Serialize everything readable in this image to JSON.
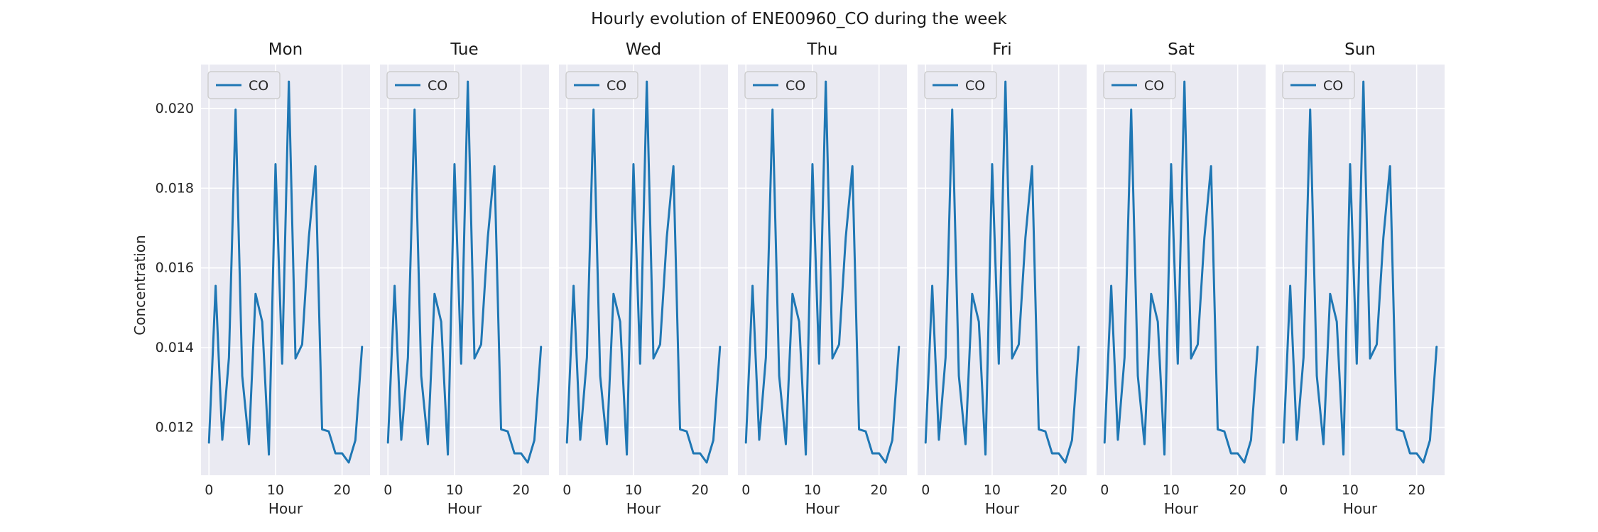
{
  "figure": {
    "suptitle": "Hourly evolution of ENE00960_CO during the week"
  },
  "colors": {
    "line": "#1f77b4",
    "panel_background": "#eaeaf2",
    "grid": "#ffffff"
  },
  "chart_data": {
    "type": "line",
    "panels": [
      "Mon",
      "Tue",
      "Wed",
      "Thu",
      "Fri",
      "Sat",
      "Sun"
    ],
    "xlabel": "Hour",
    "ylabel": "Concentration",
    "xlim": [
      -1.2,
      24.2
    ],
    "ylim": [
      0.0108,
      0.0211
    ],
    "xticks": [
      0,
      10,
      20
    ],
    "yticks": [
      0.012,
      0.014,
      0.016,
      0.018,
      0.02
    ],
    "ytick_labels": [
      "0.012",
      "0.014",
      "0.016",
      "0.018",
      "0.020"
    ],
    "grid": true,
    "legend_location": "top-left",
    "shared_y": true,
    "series": [
      {
        "name": "CO",
        "x": [
          0,
          1,
          2,
          3,
          4,
          5,
          6,
          7,
          8,
          9,
          10,
          11,
          12,
          13,
          14,
          15,
          16,
          17,
          18,
          19,
          20,
          21,
          22,
          23
        ],
        "y": [
          0.01162,
          0.01555,
          0.01169,
          0.01375,
          0.01997,
          0.01329,
          0.01158,
          0.01535,
          0.01465,
          0.01132,
          0.0186,
          0.0136,
          0.02067,
          0.01373,
          0.01408,
          0.01676,
          0.01855,
          0.01195,
          0.0119,
          0.01135,
          0.01135,
          0.01112,
          0.01168,
          0.01402
        ]
      }
    ]
  }
}
